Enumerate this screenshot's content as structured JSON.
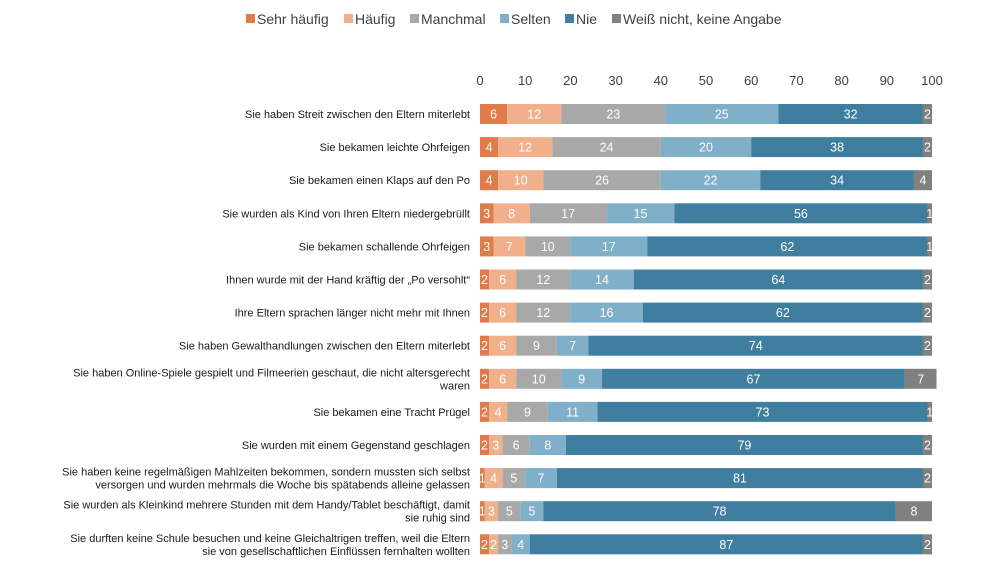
{
  "chart_data": {
    "type": "bar",
    "orientation": "horizontal",
    "stacked": true,
    "title": "",
    "xlim": [
      0,
      100
    ],
    "x_ticks": [
      "0",
      "10",
      "20",
      "30",
      "40",
      "50",
      "60",
      "70",
      "80",
      "90",
      "100"
    ],
    "legend_position": "top",
    "series": [
      {
        "name": "Sehr häufig",
        "color": "#e07b4a",
        "values": [
          6,
          4,
          4,
          3,
          3,
          2,
          2,
          2,
          2,
          2,
          2,
          1,
          1,
          2
        ]
      },
      {
        "name": "Häufig",
        "color": "#f0b08c",
        "values": [
          12,
          12,
          10,
          8,
          7,
          6,
          6,
          6,
          6,
          4,
          3,
          4,
          3,
          2
        ]
      },
      {
        "name": "Manchmal",
        "color": "#a8a8a8",
        "values": [
          23,
          24,
          26,
          17,
          10,
          12,
          12,
          9,
          10,
          9,
          6,
          5,
          5,
          3
        ]
      },
      {
        "name": "Selten",
        "color": "#7fafc9",
        "values": [
          25,
          20,
          22,
          15,
          17,
          14,
          16,
          7,
          9,
          11,
          8,
          7,
          5,
          4
        ]
      },
      {
        "name": "Nie",
        "color": "#3f7e9f",
        "values": [
          32,
          38,
          34,
          56,
          62,
          64,
          62,
          74,
          67,
          73,
          79,
          81,
          78,
          87
        ]
      },
      {
        "name": "Weiß nicht, keine Angabe",
        "color": "#808080",
        "values": [
          2,
          2,
          4,
          1,
          1,
          2,
          2,
          2,
          7,
          1,
          2,
          2,
          8,
          2
        ]
      }
    ],
    "categories": [
      [
        "Sie haben Streit zwischen den Eltern miterlebt"
      ],
      [
        "Sie bekamen leichte Ohrfeigen"
      ],
      [
        "Sie bekamen einen Klaps auf den Po"
      ],
      [
        "Sie wurden als Kind von Ihren Eltern niedergebrüllt"
      ],
      [
        "Sie bekamen schallende Ohrfeigen"
      ],
      [
        "Ihnen wurde mit der Hand kräftig der „Po versohlt“"
      ],
      [
        "Ihre Eltern sprachen länger nicht mehr mit Ihnen"
      ],
      [
        "Sie haben Gewalthandlungen zwischen den Eltern miterlebt"
      ],
      [
        "Sie haben Online-Spiele gespielt und Filmeerien geschaut, die nicht altersgerecht",
        "waren"
      ],
      [
        "Sie bekamen eine Tracht Prügel"
      ],
      [
        "Sie wurden mit einem Gegenstand geschlagen"
      ],
      [
        "Sie haben keine regelmäßigen Mahlzeiten bekommen, sondern mussten sich selbst",
        "versorgen und wurden mehrmals die Woche bis spätabends alleine gelassen"
      ],
      [
        "Sie wurden als Kleinkind mehrere Stunden mit dem Handy/Tablet beschäftigt, damit",
        "sie ruhig sind"
      ],
      [
        "Sie durften keine Schule besuchen und keine Gleichaltrigen treffen, weil die Eltern",
        "sie von gesellschaftlichen Einflüssen fernhalten wollten"
      ]
    ]
  }
}
